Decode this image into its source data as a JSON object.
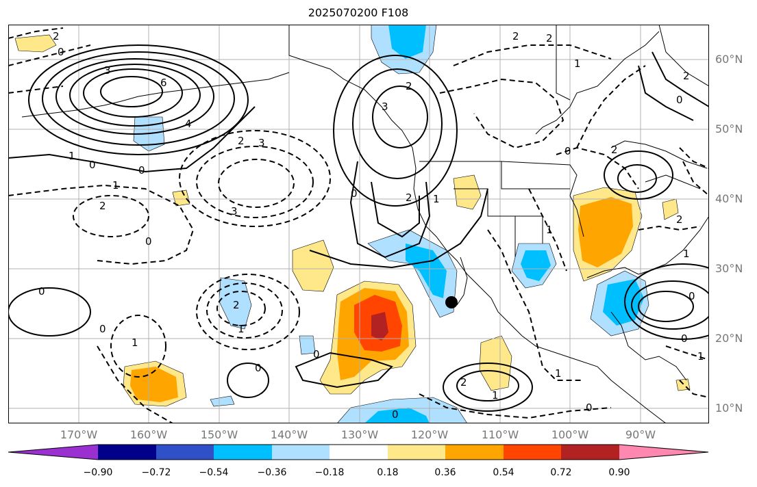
{
  "title": "2025070200 F108",
  "map": {
    "lat_labels": [
      "60°N",
      "50°N",
      "40°N",
      "30°N",
      "20°N",
      "10°N"
    ],
    "lon_labels": [
      "170°W",
      "160°W",
      "150°W",
      "140°W",
      "130°W",
      "120°W",
      "110°W",
      "100°W",
      "90°W"
    ],
    "contour_labels": [
      "2",
      "0",
      "3",
      "4",
      "6",
      "1",
      "0",
      "2",
      "3",
      "0",
      "1",
      "2",
      "3",
      "2",
      "0",
      "2",
      "1",
      "0",
      "2",
      "3",
      "2",
      "1",
      "0",
      "1",
      "2",
      "0",
      "1",
      "0",
      "2",
      "1",
      "0",
      "0",
      "1",
      "2",
      "1",
      "0",
      "0",
      "1",
      "2",
      "0",
      "1",
      "0",
      "2",
      "0"
    ],
    "marker": "black-dot"
  },
  "colorbar": {
    "tick_labels": [
      "−0.90",
      "−0.72",
      "−0.54",
      "−0.36",
      "−0.18",
      "0.18",
      "0.36",
      "0.54",
      "0.72",
      "0.90"
    ],
    "colors": [
      "#9b30d0",
      "#00008b",
      "#3050c8",
      "#00bfff",
      "#b0e0ff",
      "#ffffff",
      "#ffe88a",
      "#ffa500",
      "#ff4500",
      "#b22222",
      "#ff88b0"
    ]
  }
}
